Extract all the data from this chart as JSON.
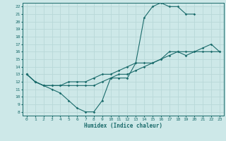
{
  "title": "",
  "xlabel": "Humidex (Indice chaleur)",
  "ylabel": "",
  "xlim": [
    -0.5,
    23.5
  ],
  "ylim": [
    7.5,
    22.5
  ],
  "xticks": [
    0,
    1,
    2,
    3,
    4,
    5,
    6,
    7,
    8,
    9,
    10,
    11,
    12,
    13,
    14,
    15,
    16,
    17,
    18,
    19,
    20,
    21,
    22,
    23
  ],
  "yticks": [
    8,
    9,
    10,
    11,
    12,
    13,
    14,
    15,
    16,
    17,
    18,
    19,
    20,
    21,
    22
  ],
  "bg_color": "#cde8e8",
  "line_color": "#1a6b6b",
  "grid_color": "#b8d8d8",
  "lines": [
    {
      "x": [
        0,
        1,
        2,
        3,
        4,
        5,
        6,
        7,
        8,
        9,
        10,
        11,
        12,
        13,
        14,
        15,
        16,
        17,
        18,
        19,
        20
      ],
      "y": [
        13,
        12,
        11.5,
        11,
        10.5,
        9.5,
        8.5,
        8.0,
        8.0,
        9.5,
        12.5,
        12.5,
        12.5,
        14.5,
        20.5,
        22,
        22.5,
        22,
        22,
        21,
        21
      ]
    },
    {
      "x": [
        0,
        1,
        2,
        3,
        4,
        5,
        6,
        7,
        8,
        9,
        10,
        11,
        12,
        13,
        14,
        15,
        16,
        17,
        18,
        19,
        20,
        21,
        22,
        23
      ],
      "y": [
        13,
        12,
        11.5,
        11.5,
        11.5,
        11.5,
        11.5,
        11.5,
        11.5,
        12,
        12.5,
        13,
        13,
        13.5,
        14,
        14.5,
        15,
        15.5,
        16,
        16,
        16,
        16.5,
        17,
        16
      ]
    },
    {
      "x": [
        0,
        1,
        2,
        3,
        4,
        5,
        6,
        7,
        8,
        9,
        10,
        11,
        12,
        13,
        14,
        15,
        16,
        17,
        18,
        19,
        20,
        21,
        22,
        23
      ],
      "y": [
        13,
        12,
        11.5,
        11.5,
        11.5,
        12,
        12,
        12,
        12.5,
        13,
        13,
        13.5,
        14,
        14.5,
        14.5,
        14.5,
        15,
        16,
        16,
        15.5,
        16,
        16,
        16,
        16
      ]
    }
  ]
}
